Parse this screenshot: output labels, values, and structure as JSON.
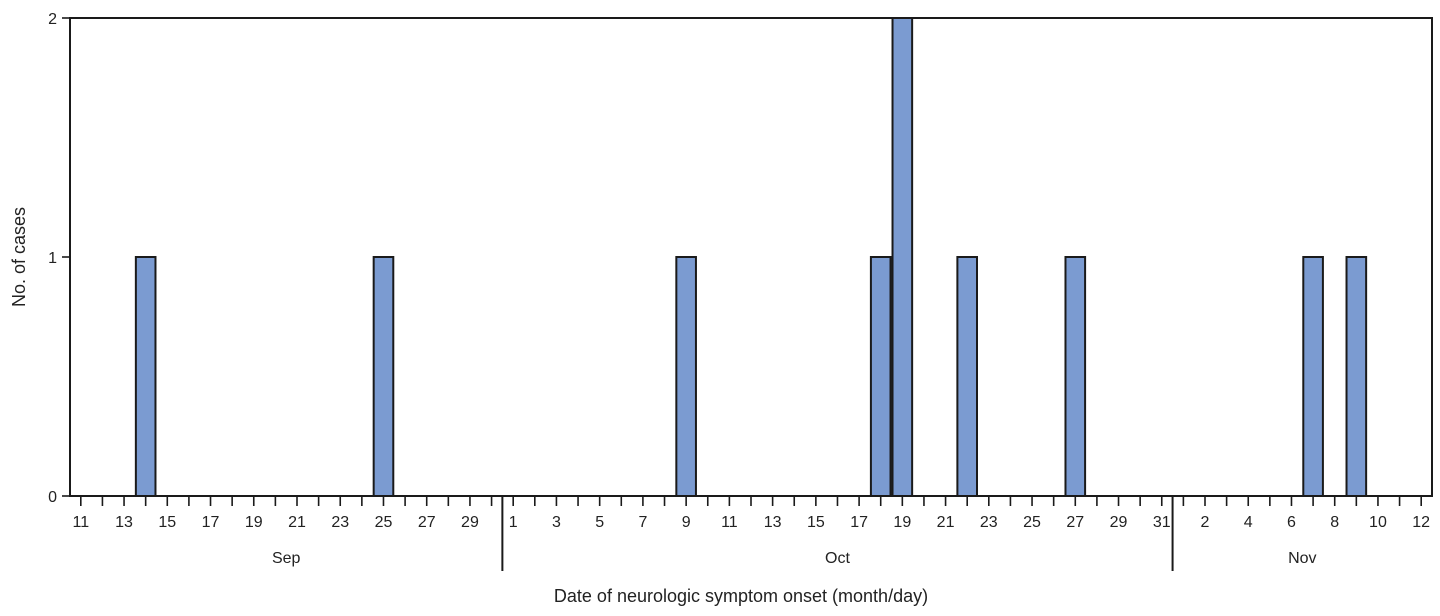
{
  "chart_data": {
    "type": "bar",
    "xlabel": "Date of neurologic symptom onset (month/day)",
    "ylabel": "No. of cases",
    "ylim": [
      0,
      2
    ],
    "y_ticks": [
      "0",
      "1",
      "2"
    ],
    "grid": false,
    "legend": "none",
    "bar_color": "#7b9bd1",
    "bar_edge_color": "#1a1a1a",
    "x_range": [
      "Sep 11",
      "Nov 12"
    ],
    "x_tick_labels": [
      "11",
      "13",
      "15",
      "17",
      "19",
      "21",
      "23",
      "25",
      "27",
      "29",
      "1",
      "3",
      "5",
      "7",
      "9",
      "11",
      "13",
      "15",
      "17",
      "19",
      "21",
      "23",
      "25",
      "27",
      "29",
      "31",
      "2",
      "4",
      "6",
      "8",
      "10",
      "12"
    ],
    "months": [
      "Sep",
      "Oct",
      "Nov"
    ],
    "bars": [
      {
        "date": "Sep 14",
        "value": 1
      },
      {
        "date": "Sep 25",
        "value": 1
      },
      {
        "date": "Oct 9",
        "value": 1
      },
      {
        "date": "Oct 18",
        "value": 1
      },
      {
        "date": "Oct 19",
        "value": 2
      },
      {
        "date": "Oct 22",
        "value": 1
      },
      {
        "date": "Oct 27",
        "value": 1
      },
      {
        "date": "Nov 7",
        "value": 1
      },
      {
        "date": "Nov 9",
        "value": 1
      }
    ]
  }
}
